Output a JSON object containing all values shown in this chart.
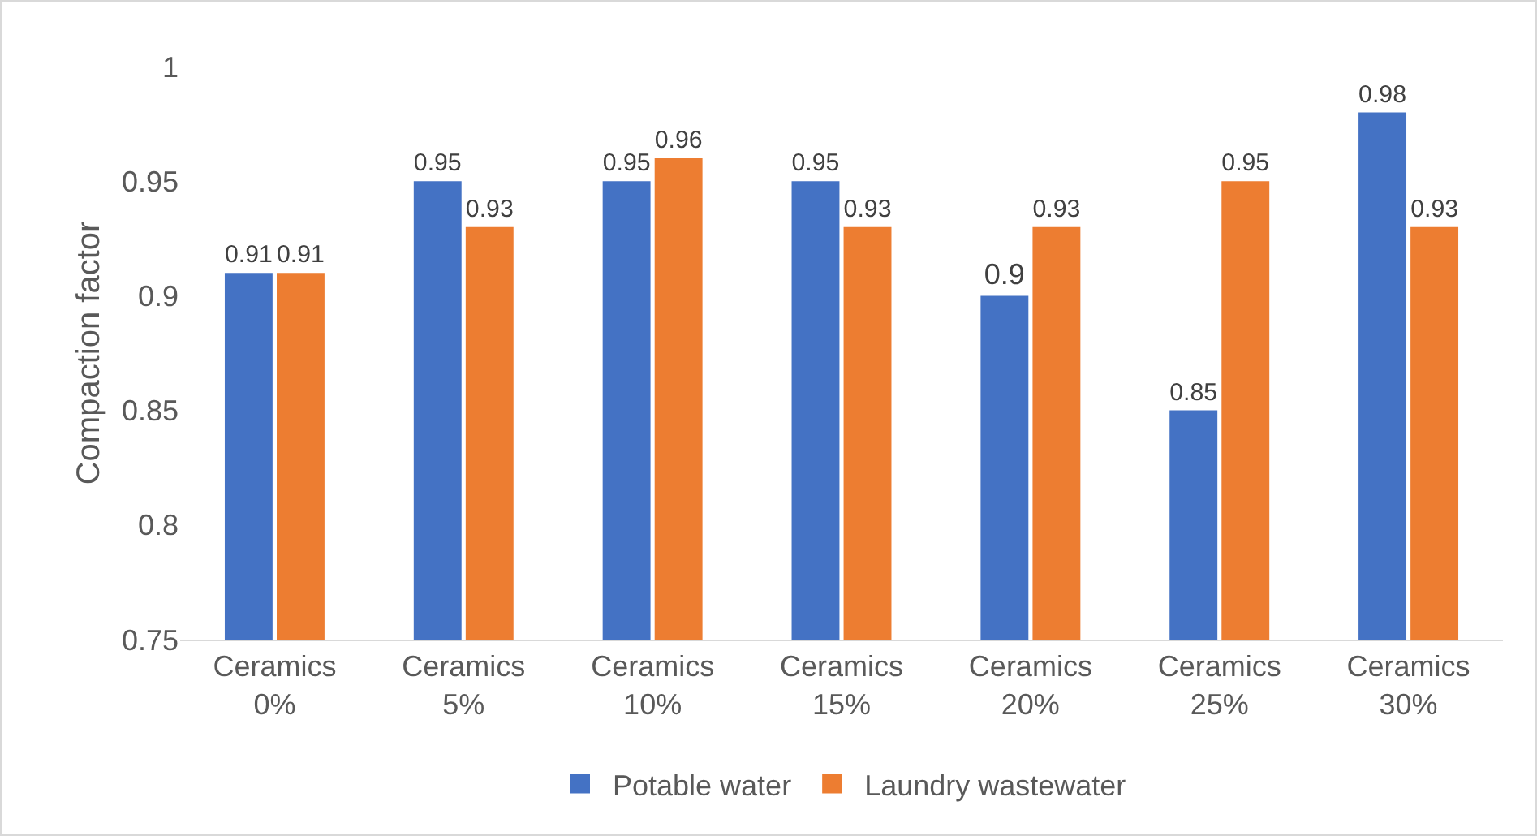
{
  "chart_data": {
    "type": "bar",
    "ylabel": "Compaction factor",
    "categories": [
      "Ceramics 0%",
      "Ceramics 5%",
      "Ceramics 10%",
      "Ceramics 15%",
      "Ceramics 20%",
      "Ceramics 25%",
      "Ceramics 30%"
    ],
    "series": [
      {
        "name": "Potable water",
        "color": "#4472c4",
        "values": [
          0.91,
          0.95,
          0.95,
          0.95,
          0.9,
          0.85,
          0.98
        ]
      },
      {
        "name": "Laundry wastewater",
        "color": "#ed7d31",
        "values": [
          0.91,
          0.93,
          0.96,
          0.93,
          0.93,
          0.95,
          0.93
        ]
      }
    ],
    "ylim": [
      0.75,
      1
    ],
    "yticks": [
      0.75,
      0.8,
      0.85,
      0.9,
      0.95,
      1
    ],
    "grid": false,
    "legend": "bottom",
    "data_labels": true
  }
}
